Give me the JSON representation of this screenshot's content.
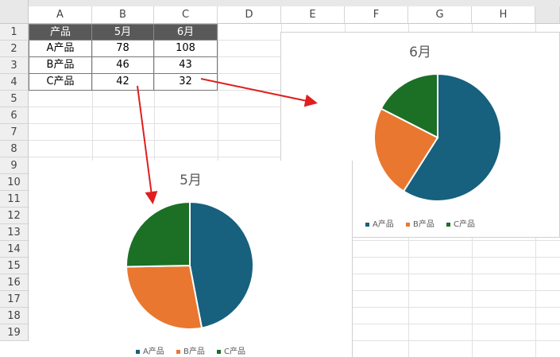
{
  "sheet": {
    "columns": [
      "A",
      "B",
      "C",
      "D",
      "E",
      "F",
      "G",
      "H"
    ],
    "rows": [
      "1",
      "2",
      "3",
      "4",
      "5",
      "6",
      "7",
      "8",
      "9",
      "10",
      "11",
      "12",
      "13",
      "14",
      "15",
      "16",
      "17",
      "18",
      "19"
    ],
    "table": {
      "headers": [
        "产品",
        "5月",
        "6月"
      ],
      "rows": [
        [
          "A产品",
          "78",
          "108"
        ],
        [
          "B产品",
          "46",
          "43"
        ],
        [
          "C产品",
          "42",
          "32"
        ]
      ]
    }
  },
  "charts": [
    {
      "id": "june",
      "title": "6月",
      "labels": [
        "A产品",
        "B产品",
        "C产品"
      ],
      "values": [
        108,
        43,
        32
      ],
      "colors": [
        "#17607e",
        "#e9772f",
        "#1b7025"
      ]
    },
    {
      "id": "may",
      "title": "5月",
      "labels": [
        "A产品",
        "B产品",
        "C产品"
      ],
      "values": [
        78,
        46,
        42
      ],
      "colors": [
        "#17607e",
        "#e9772f",
        "#1b7025"
      ]
    }
  ],
  "chart_data": [
    {
      "type": "pie",
      "title": "6月",
      "categories": [
        "A产品",
        "B产品",
        "C产品"
      ],
      "values": [
        108,
        43,
        32
      ],
      "legend": "bottom"
    },
    {
      "type": "pie",
      "title": "5月",
      "categories": [
        "A产品",
        "B产品",
        "C产品"
      ],
      "values": [
        78,
        46,
        42
      ],
      "legend": "bottom"
    }
  ],
  "arrow_color": "#e01e1e"
}
